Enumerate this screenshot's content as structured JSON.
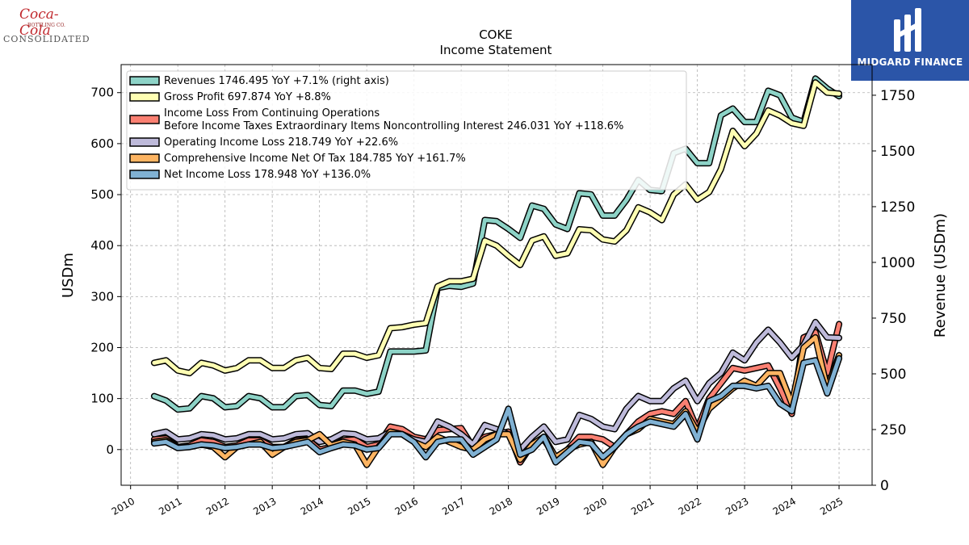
{
  "logos": {
    "left_brand": "Coca-Cola",
    "left_sub": "BOTTLING CO.",
    "left_name": "CONSOLIDATED",
    "right_name": "MIDGARD FINANCE"
  },
  "chart_data": {
    "type": "line",
    "title": "COKE",
    "subtitle": "Income Statement",
    "ylabel": "USDm",
    "ylabel_right": "Revenue (USDm)",
    "ylim": [
      -70,
      755
    ],
    "ylim_right": [
      0,
      1887.5
    ],
    "yticks": [
      0,
      100,
      200,
      300,
      400,
      500,
      600,
      700
    ],
    "yticks_right": [
      0,
      250,
      500,
      750,
      1000,
      1250,
      1500,
      1750
    ],
    "xlim": [
      2009.8,
      2025.7
    ],
    "xticks": [
      "2010",
      "2011",
      "2012",
      "2013",
      "2014",
      "2015",
      "2016",
      "2017",
      "2018",
      "2019",
      "2020",
      "2021",
      "2022",
      "2023",
      "2024",
      "2025"
    ],
    "grid": true,
    "legend_position": "top-left",
    "x": [
      2010.5,
      2010.75,
      2011.0,
      2011.25,
      2011.5,
      2011.75,
      2012.0,
      2012.25,
      2012.5,
      2012.75,
      2013.0,
      2013.25,
      2013.5,
      2013.75,
      2014.0,
      2014.25,
      2014.5,
      2014.75,
      2015.0,
      2015.25,
      2015.5,
      2015.75,
      2016.0,
      2016.25,
      2016.5,
      2016.75,
      2017.0,
      2017.25,
      2017.5,
      2017.75,
      2018.0,
      2018.25,
      2018.5,
      2018.75,
      2019.0,
      2019.25,
      2019.5,
      2019.75,
      2020.0,
      2020.25,
      2020.5,
      2020.75,
      2021.0,
      2021.25,
      2021.5,
      2021.75,
      2022.0,
      2022.25,
      2022.5,
      2022.75,
      2023.0,
      2023.25,
      2023.5,
      2023.75,
      2024.0,
      2024.25,
      2024.5,
      2024.75,
      2025.0
    ],
    "series": [
      {
        "name": "Revenues  1746.495 YoY +7.1% (right axis)",
        "color": "#8dd3c7",
        "axis": "right",
        "values": [
          400,
          380,
          340,
          345,
          400,
          390,
          350,
          355,
          400,
          390,
          350,
          350,
          400,
          405,
          360,
          355,
          425,
          425,
          410,
          420,
          600,
          600,
          600,
          605,
          885,
          895,
          890,
          905,
          1190,
          1185,
          1150,
          1110,
          1255,
          1240,
          1170,
          1150,
          1310,
          1305,
          1210,
          1210,
          1280,
          1370,
          1325,
          1320,
          1490,
          1510,
          1445,
          1445,
          1660,
          1690,
          1630,
          1630,
          1770,
          1750,
          1650,
          1630,
          1825,
          1780,
          1746
        ]
      },
      {
        "name": "Gross Profit  697.874 YoY +8.8%",
        "color": "#ffffb3",
        "axis": "left",
        "values": [
          170,
          175,
          155,
          150,
          170,
          165,
          155,
          160,
          175,
          175,
          160,
          160,
          175,
          180,
          160,
          158,
          188,
          188,
          180,
          185,
          238,
          240,
          245,
          248,
          320,
          330,
          330,
          335,
          410,
          400,
          380,
          362,
          410,
          418,
          380,
          385,
          432,
          430,
          412,
          408,
          430,
          475,
          465,
          450,
          500,
          520,
          490,
          505,
          550,
          625,
          595,
          620,
          665,
          655,
          640,
          635,
          720,
          700,
          698
        ]
      },
      {
        "name": "Income Loss From Continuing Operations\nBefore Income Taxes Extraordinary Items Noncontrolling Interest  246.031 YoY +118.6%",
        "color": "#fb8072",
        "axis": "left",
        "values": [
          20,
          22,
          5,
          8,
          18,
          15,
          5,
          8,
          18,
          18,
          5,
          5,
          18,
          20,
          0,
          5,
          18,
          20,
          5,
          10,
          45,
          40,
          25,
          20,
          38,
          40,
          42,
          5,
          25,
          30,
          35,
          -25,
          10,
          20,
          -15,
          0,
          25,
          25,
          20,
          5,
          30,
          55,
          70,
          75,
          70,
          95,
          40,
          100,
          130,
          160,
          155,
          160,
          165,
          120,
          70,
          220,
          230,
          150,
          246
        ]
      },
      {
        "name": "Operating Income Loss  218.749 YoY +22.6%",
        "color": "#bebada",
        "axis": "left",
        "values": [
          30,
          35,
          20,
          22,
          30,
          28,
          20,
          22,
          30,
          30,
          20,
          22,
          30,
          32,
          15,
          20,
          32,
          30,
          20,
          22,
          35,
          30,
          20,
          15,
          55,
          45,
          30,
          10,
          48,
          40,
          30,
          0,
          25,
          45,
          15,
          20,
          68,
          60,
          45,
          40,
          80,
          105,
          95,
          95,
          120,
          135,
          95,
          130,
          150,
          190,
          175,
          210,
          235,
          210,
          180,
          205,
          250,
          220,
          219
        ]
      },
      {
        "name": "Comprehensive Income Net Of Tax  184.785 YoY +161.7%",
        "color": "#fdb462",
        "axis": "left",
        "values": [
          15,
          18,
          5,
          5,
          10,
          5,
          -15,
          5,
          10,
          15,
          -10,
          5,
          15,
          18,
          30,
          8,
          15,
          10,
          -30,
          5,
          35,
          30,
          15,
          5,
          25,
          15,
          5,
          0,
          20,
          30,
          30,
          -20,
          10,
          25,
          -15,
          0,
          10,
          15,
          -30,
          5,
          30,
          40,
          60,
          55,
          50,
          75,
          35,
          80,
          100,
          120,
          135,
          125,
          150,
          150,
          90,
          200,
          220,
          120,
          185
        ]
      },
      {
        "name": "Net Income Loss  178.948 YoY +136.0%",
        "color": "#80b1d3",
        "axis": "left",
        "values": [
          12,
          15,
          3,
          5,
          10,
          8,
          3,
          5,
          10,
          10,
          3,
          5,
          10,
          15,
          -5,
          3,
          10,
          8,
          0,
          3,
          30,
          30,
          15,
          -15,
          15,
          20,
          20,
          -10,
          5,
          20,
          80,
          -10,
          0,
          25,
          -25,
          -5,
          15,
          12,
          -15,
          5,
          30,
          45,
          55,
          50,
          45,
          70,
          20,
          95,
          105,
          125,
          125,
          120,
          125,
          90,
          75,
          170,
          175,
          110,
          179
        ]
      }
    ]
  }
}
